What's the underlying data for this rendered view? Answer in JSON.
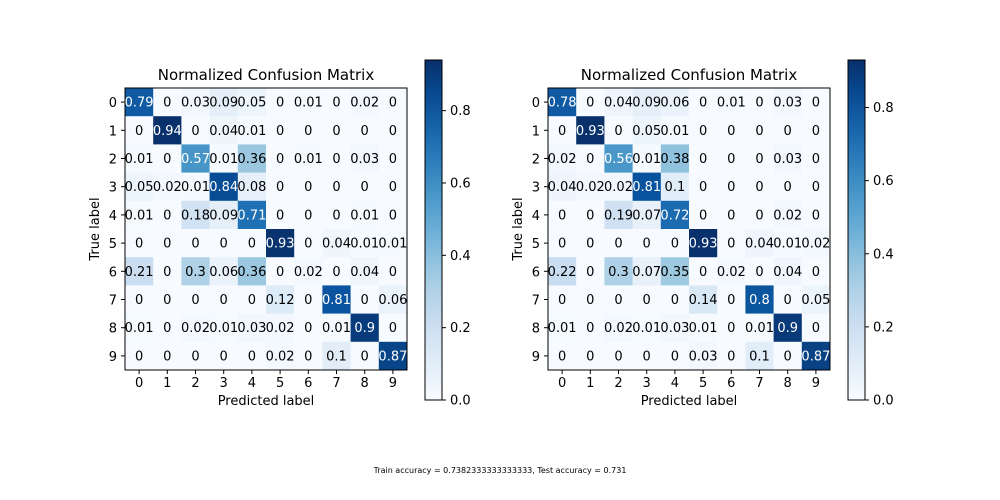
{
  "chart_data": [
    {
      "type": "heatmap",
      "title": "Normalized Confusion Matrix",
      "xlabel": "Predicted label",
      "ylabel": "True label",
      "x_categories": [
        "0",
        "1",
        "2",
        "3",
        "4",
        "5",
        "6",
        "7",
        "8",
        "9"
      ],
      "y_categories": [
        "0",
        "1",
        "2",
        "3",
        "4",
        "5",
        "6",
        "7",
        "8",
        "9"
      ],
      "colormap": "Blues",
      "colorbar": {
        "range": [
          0.0,
          0.94
        ],
        "ticks": [
          "0.0",
          "0.2",
          "0.4",
          "0.6",
          "0.8"
        ]
      },
      "values": [
        [
          0.79,
          0.0,
          0.03,
          0.09,
          0.05,
          0.0,
          0.01,
          0.0,
          0.02,
          0.0
        ],
        [
          0.0,
          0.94,
          0.0,
          0.04,
          0.01,
          0.0,
          0.0,
          0.0,
          0.0,
          0.0
        ],
        [
          0.01,
          0.0,
          0.57,
          0.01,
          0.36,
          0.0,
          0.01,
          0.0,
          0.03,
          0.0
        ],
        [
          0.05,
          0.02,
          0.01,
          0.84,
          0.08,
          0.0,
          0.0,
          0.0,
          0.0,
          0.0
        ],
        [
          0.01,
          0.0,
          0.18,
          0.09,
          0.71,
          0.0,
          0.0,
          0.0,
          0.01,
          0.0
        ],
        [
          0.0,
          0.0,
          0.0,
          0.0,
          0.0,
          0.93,
          0.0,
          0.04,
          0.01,
          0.01
        ],
        [
          0.21,
          0.0,
          0.3,
          0.06,
          0.36,
          0.0,
          0.02,
          0.0,
          0.04,
          0.0
        ],
        [
          0.0,
          0.0,
          0.0,
          0.0,
          0.0,
          0.12,
          0.0,
          0.81,
          0.0,
          0.06
        ],
        [
          0.01,
          0.0,
          0.02,
          0.01,
          0.03,
          0.02,
          0.0,
          0.01,
          0.9,
          0.0
        ],
        [
          0.0,
          0.0,
          0.0,
          0.0,
          0.0,
          0.02,
          0.0,
          0.1,
          0.0,
          0.87
        ]
      ]
    },
    {
      "type": "heatmap",
      "title": "Normalized Confusion Matrix",
      "xlabel": "Predicted label",
      "ylabel": "True label",
      "x_categories": [
        "0",
        "1",
        "2",
        "3",
        "4",
        "5",
        "6",
        "7",
        "8",
        "9"
      ],
      "y_categories": [
        "0",
        "1",
        "2",
        "3",
        "4",
        "5",
        "6",
        "7",
        "8",
        "9"
      ],
      "colormap": "Blues",
      "colorbar": {
        "range": [
          0.0,
          0.93
        ],
        "ticks": [
          "0.0",
          "0.2",
          "0.4",
          "0.6",
          "0.8"
        ]
      },
      "values": [
        [
          0.78,
          0.0,
          0.04,
          0.09,
          0.06,
          0.0,
          0.01,
          0.0,
          0.03,
          0.0
        ],
        [
          0.0,
          0.93,
          0.0,
          0.05,
          0.01,
          0.0,
          0.0,
          0.0,
          0.0,
          0.0
        ],
        [
          0.02,
          0.0,
          0.56,
          0.01,
          0.38,
          0.0,
          0.0,
          0.0,
          0.03,
          0.0
        ],
        [
          0.04,
          0.02,
          0.02,
          0.81,
          0.1,
          0.0,
          0.0,
          0.0,
          0.0,
          0.0
        ],
        [
          0.0,
          0.0,
          0.19,
          0.07,
          0.72,
          0.0,
          0.0,
          0.0,
          0.02,
          0.0
        ],
        [
          0.0,
          0.0,
          0.0,
          0.0,
          0.0,
          0.93,
          0.0,
          0.04,
          0.01,
          0.02
        ],
        [
          0.22,
          0.0,
          0.3,
          0.07,
          0.35,
          0.0,
          0.02,
          0.0,
          0.04,
          0.0
        ],
        [
          0.0,
          0.0,
          0.0,
          0.0,
          0.0,
          0.14,
          0.0,
          0.8,
          0.0,
          0.05
        ],
        [
          0.01,
          0.0,
          0.02,
          0.01,
          0.03,
          0.01,
          0.0,
          0.01,
          0.9,
          0.0
        ],
        [
          0.0,
          0.0,
          0.0,
          0.0,
          0.0,
          0.03,
          0.0,
          0.1,
          0.0,
          0.87
        ]
      ]
    }
  ],
  "footer": "Train accuracy = 0.7382333333333333, Test accuracy = 0.731"
}
